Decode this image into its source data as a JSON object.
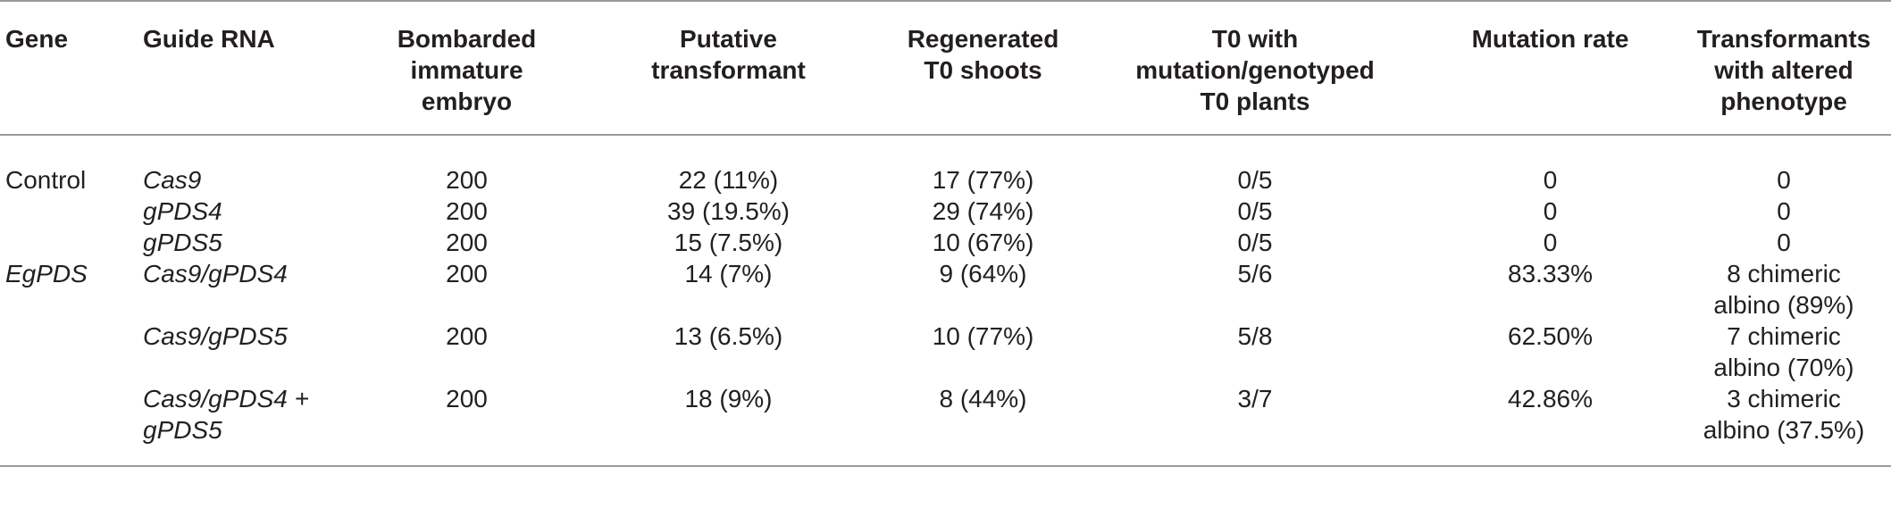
{
  "headers": {
    "gene": "Gene",
    "guide_rna": "Guide RNA",
    "bombarded": [
      "Bombarded",
      "immature",
      "embryo"
    ],
    "putative": [
      "Putative",
      "transformant"
    ],
    "regenerated": [
      "Regenerated",
      "T0 shoots"
    ],
    "t0_mutation": [
      "T0 with",
      "mutation/genotyped",
      "T0 plants"
    ],
    "mutation_rate": "Mutation rate",
    "altered_phenotype": [
      "Transformants",
      "with altered",
      "phenotype"
    ]
  },
  "rows": [
    {
      "gene": "Control",
      "guide_rna": [
        "Cas9"
      ],
      "bombarded": "200",
      "putative": "22 (11%)",
      "regenerated": "17 (77%)",
      "t0_mutation": "0/5",
      "mutation_rate": "0",
      "phenotype": [
        "0"
      ]
    },
    {
      "gene": "",
      "guide_rna": [
        "gPDS4"
      ],
      "bombarded": "200",
      "putative": "39 (19.5%)",
      "regenerated": "29 (74%)",
      "t0_mutation": "0/5",
      "mutation_rate": "0",
      "phenotype": [
        "0"
      ]
    },
    {
      "gene": "",
      "guide_rna": [
        "gPDS5"
      ],
      "bombarded": "200",
      "putative": "15 (7.5%)",
      "regenerated": "10 (67%)",
      "t0_mutation": "0/5",
      "mutation_rate": "0",
      "phenotype": [
        "0"
      ]
    },
    {
      "gene": "EgPDS",
      "guide_rna": [
        "Cas9/gPDS4"
      ],
      "bombarded": "200",
      "putative": "14 (7%)",
      "regenerated": "9 (64%)",
      "t0_mutation": "5/6",
      "mutation_rate": "83.33%",
      "phenotype": [
        "8 chimeric",
        "albino (89%)"
      ]
    },
    {
      "gene": "",
      "guide_rna": [
        "Cas9/gPDS5"
      ],
      "bombarded": "200",
      "putative": "13 (6.5%)",
      "regenerated": "10 (77%)",
      "t0_mutation": "5/8",
      "mutation_rate": "62.50%",
      "phenotype": [
        "7 chimeric",
        "albino (70%)"
      ]
    },
    {
      "gene": "",
      "guide_rna": [
        "Cas9/gPDS4 +",
        "gPDS5"
      ],
      "bombarded": "200",
      "putative": "18 (9%)",
      "regenerated": "8 (44%)",
      "t0_mutation": "3/7",
      "mutation_rate": "42.86%",
      "phenotype": [
        "3 chimeric",
        "albino (37.5%)"
      ]
    }
  ]
}
